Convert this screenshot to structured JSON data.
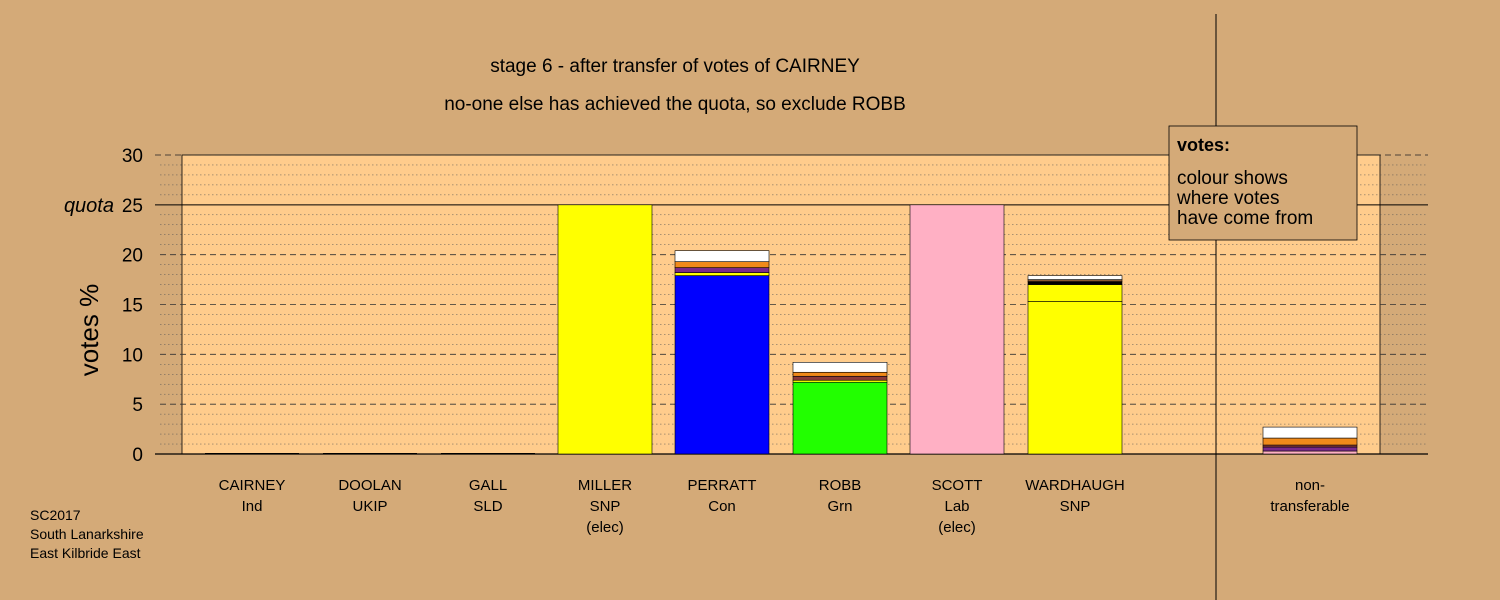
{
  "chart_data": {
    "type": "bar",
    "title": "stage 6 - after transfer of votes of CAIRNEY",
    "subtitle": "no-one else has achieved the quota, so exclude ROBB",
    "ylabel": "votes %",
    "ylim": [
      0,
      30
    ],
    "yticks": [
      0,
      5,
      10,
      15,
      20,
      25,
      30
    ],
    "quota": 25,
    "quota_label": "quota",
    "stacked": true,
    "categories": [
      {
        "name": "CAIRNEY",
        "party": "Ind",
        "note": ""
      },
      {
        "name": "DOOLAN",
        "party": "UKIP",
        "note": ""
      },
      {
        "name": "GALL",
        "party": "SLD",
        "note": ""
      },
      {
        "name": "MILLER",
        "party": "SNP",
        "note": "(elec)"
      },
      {
        "name": "PERRATT",
        "party": "Con",
        "note": ""
      },
      {
        "name": "ROBB",
        "party": "Grn",
        "note": ""
      },
      {
        "name": "SCOTT",
        "party": "Lab",
        "note": "(elec)"
      },
      {
        "name": "WARDHAUGH",
        "party": "SNP",
        "note": ""
      },
      {
        "name": "non-",
        "party": "transferable",
        "note": ""
      }
    ],
    "bars": [
      [],
      [],
      [],
      [
        {
          "value": 25.0,
          "color": "#ffff00"
        }
      ],
      [
        {
          "value": 17.9,
          "color": "#0000ff"
        },
        {
          "value": 0.3,
          "color": "#ffff00"
        },
        {
          "value": 0.5,
          "color": "#7a2a8a"
        },
        {
          "value": 0.6,
          "color": "#f08a1a"
        },
        {
          "value": 1.1,
          "color": "#ffffff"
        }
      ],
      [
        {
          "value": 7.2,
          "color": "#22ff00"
        },
        {
          "value": 0.2,
          "color": "#ffff00"
        },
        {
          "value": 0.4,
          "color": "#8a3a3a"
        },
        {
          "value": 0.4,
          "color": "#f08a1a"
        },
        {
          "value": 1.0,
          "color": "#ffffff"
        }
      ],
      [
        {
          "value": 25.0,
          "color": "#ffb0c4"
        }
      ],
      [
        {
          "value": 15.3,
          "color": "#ffff00"
        },
        {
          "value": 1.7,
          "color": "#ffff00"
        },
        {
          "value": 0.3,
          "color": "#000000"
        },
        {
          "value": 0.2,
          "color": "#8a5a30"
        },
        {
          "value": 0.4,
          "color": "#ffffff"
        }
      ],
      [
        {
          "value": 0.3,
          "color": "#ffb0c4"
        },
        {
          "value": 0.4,
          "color": "#7a2a8a"
        },
        {
          "value": 0.2,
          "color": "#8a3a3a"
        },
        {
          "value": 0.7,
          "color": "#f08a1a"
        },
        {
          "value": 1.1,
          "color": "#ffffff"
        }
      ]
    ],
    "colors": {
      "background": "#d4aa78",
      "plot_area": "#ffcc8c"
    }
  },
  "legend": {
    "title": "votes:",
    "lines": [
      "colour shows",
      "where votes",
      "have come from"
    ]
  },
  "footer": {
    "lines": [
      "SC2017",
      "South Lanarkshire",
      "East Kilbride East"
    ]
  }
}
